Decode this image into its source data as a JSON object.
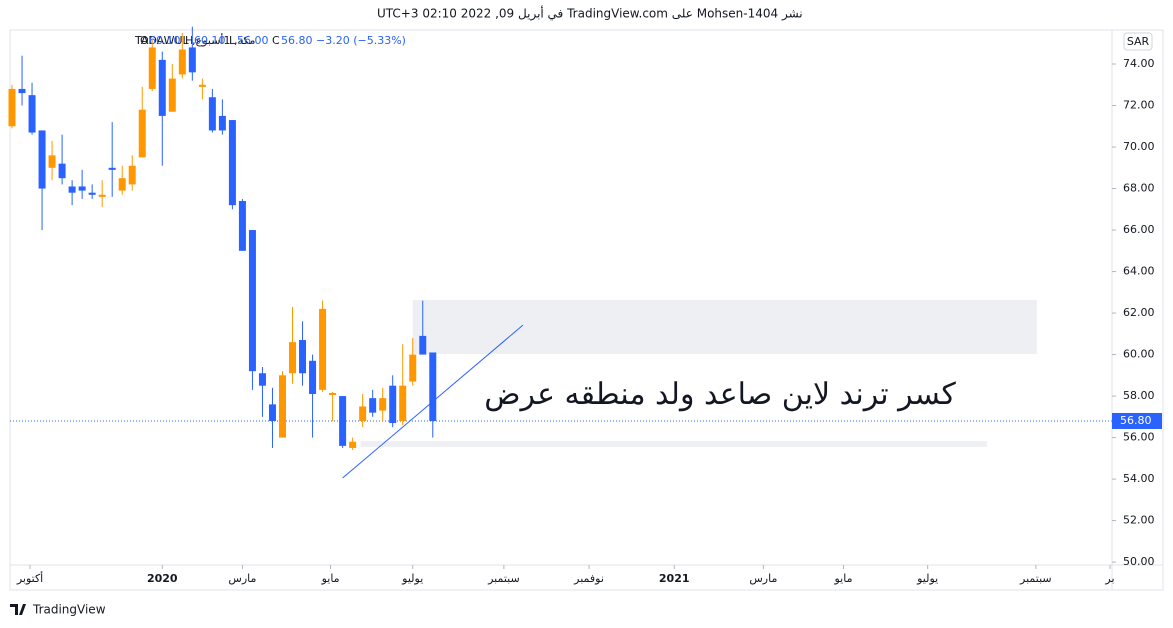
{
  "header": {
    "published": "نشر Mohsen-1404 على TradingView.com في أبريل 09, 2022 02:10 UTC+3"
  },
  "legend": {
    "symbol": "مكة, 1أسبوع, TADAWUL",
    "open_label": "O",
    "open": "60.10",
    "high_label": "H",
    "high": "60.10",
    "low_label": "L",
    "low": "56.00",
    "close_label": "C",
    "close": "56.80",
    "change": "−3.20 (−5.33%)"
  },
  "currency": "SAR",
  "footer": {
    "brand": "TradingView"
  },
  "chart_data": {
    "type": "candlestick",
    "up_color": "#ff9800",
    "down_color": "#2962ff",
    "open": [
      71.0,
      72.8,
      72.5,
      70.8,
      69.0,
      69.2,
      68.1,
      68.1,
      67.8,
      67.6,
      69.0,
      67.9,
      68.2,
      69.5,
      72.8,
      74.2,
      71.7,
      73.5,
      74.8,
      72.9,
      72.4,
      71.5,
      71.3,
      67.4,
      66.0,
      59.1,
      57.6,
      56.0,
      59.1,
      60.7,
      59.7,
      58.3,
      58.05,
      58.0,
      55.5,
      56.8,
      57.9,
      57.3,
      58.5,
      56.8,
      58.7,
      60.9,
      60.1
    ],
    "high": [
      73.0,
      74.4,
      73.1,
      70.8,
      70.3,
      70.6,
      68.4,
      68.9,
      68.2,
      68.4,
      71.2,
      69.1,
      69.6,
      72.9,
      75.2,
      74.6,
      74.0,
      75.5,
      75.8,
      73.3,
      72.8,
      72.3,
      71.3,
      67.5,
      66.0,
      59.4,
      58.4,
      59.2,
      62.3,
      61.6,
      60.0,
      62.6,
      58.2,
      58.0,
      56.0,
      58.1,
      58.3,
      58.4,
      59.0,
      60.5,
      60.8,
      62.6,
      60.1
    ],
    "low": [
      70.9,
      72.0,
      70.6,
      66.0,
      68.4,
      68.2,
      67.2,
      67.5,
      67.5,
      67.1,
      67.6,
      67.7,
      67.9,
      69.5,
      72.7,
      69.1,
      71.7,
      73.3,
      73.2,
      72.3,
      70.7,
      70.6,
      67.0,
      65.0,
      58.3,
      57.0,
      55.5,
      56.0,
      58.6,
      58.5,
      56.0,
      58.2,
      56.8,
      55.5,
      55.4,
      56.5,
      57.0,
      56.8,
      56.5,
      56.6,
      58.5,
      60.0,
      56.0
    ],
    "close": [
      72.8,
      72.6,
      70.7,
      68.0,
      69.6,
      68.5,
      67.8,
      67.9,
      67.7,
      67.7,
      68.9,
      68.5,
      69.1,
      71.8,
      74.8,
      71.5,
      73.3,
      74.7,
      73.6,
      73.0,
      70.8,
      70.8,
      67.2,
      65.0,
      59.2,
      58.5,
      56.8,
      59.0,
      60.6,
      59.1,
      58.1,
      62.2,
      58.15,
      55.6,
      55.8,
      57.5,
      57.2,
      57.9,
      56.7,
      58.5,
      60.0,
      60.0,
      56.8
    ],
    "xlim": [
      -0.2,
      109.8
    ],
    "xticks": [
      {
        "value": 1.8,
        "label": "أكتوبر"
      },
      {
        "value": 15,
        "label": "2020"
      },
      {
        "value": 23,
        "label": "مارس"
      },
      {
        "value": 31.8,
        "label": "مايو"
      },
      {
        "value": 40,
        "label": "يوليو"
      },
      {
        "value": 49.1,
        "label": "سبتمبر"
      },
      {
        "value": 57.6,
        "label": "نوفمبر"
      },
      {
        "value": 66.1,
        "label": "2021"
      },
      {
        "value": 75,
        "label": "مارس"
      },
      {
        "value": 83,
        "label": "مايو"
      },
      {
        "value": 91.4,
        "label": "يوليو"
      },
      {
        "value": 102.2,
        "label": "سبتمبر"
      },
      {
        "value": 109.6,
        "label": "بر"
      }
    ],
    "ylim": [
      49.86,
      75.64
    ],
    "yticks": [
      {
        "value": 50,
        "label": "50.00"
      },
      {
        "value": 52,
        "label": "52.00"
      },
      {
        "value": 54,
        "label": "54.00"
      },
      {
        "value": 56,
        "label": "56.00"
      },
      {
        "value": 58,
        "label": "58.00"
      },
      {
        "value": 60,
        "label": "60.00"
      },
      {
        "value": 62,
        "label": "62.00"
      },
      {
        "value": 64,
        "label": "64.00"
      },
      {
        "value": 66,
        "label": "66.00"
      },
      {
        "value": 68,
        "label": "68.00"
      },
      {
        "value": 70,
        "label": "70.00"
      },
      {
        "value": 72,
        "label": "72.00"
      },
      {
        "value": 74,
        "label": "74.00"
      }
    ],
    "last_price": {
      "value": 56.8,
      "label": "56.80"
    },
    "trend_line": {
      "x": [
        33,
        51
      ],
      "y": [
        54.05,
        61.42
      ],
      "color": "#2962ff"
    },
    "zones": [
      {
        "x": [
          40,
          102.3
        ],
        "y": [
          60.03,
          62.63
        ]
      },
      {
        "x": [
          34.8,
          97.3
        ],
        "y": [
          55.55,
          55.83
        ]
      }
    ],
    "annotation": "كسر ترند لاين صاعد ولد منطقه عرض"
  }
}
